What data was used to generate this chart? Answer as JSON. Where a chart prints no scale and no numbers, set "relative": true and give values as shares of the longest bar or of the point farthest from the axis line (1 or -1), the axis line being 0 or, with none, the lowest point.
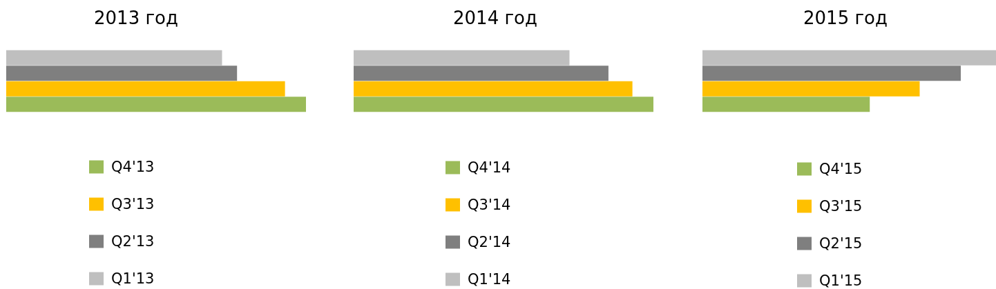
{
  "chart_data": [
    {
      "type": "bar",
      "title": "2013 год",
      "orientation": "horizontal",
      "relative": true,
      "legend": "bottom",
      "categories": [
        null
      ],
      "series": [
        {
          "name": "Q1'13",
          "color": "#bfbfbf",
          "values": [
            0.72
          ]
        },
        {
          "name": "Q2'13",
          "color": "#7f7f7f",
          "values": [
            0.77
          ]
        },
        {
          "name": "Q3'13",
          "color": "#ffc000",
          "values": [
            0.93
          ]
        },
        {
          "name": "Q4'13",
          "color": "#9bbb59",
          "values": [
            1
          ]
        }
      ]
    },
    {
      "type": "bar",
      "title": "2014 год",
      "orientation": "horizontal",
      "relative": true,
      "legend": "bottom",
      "categories": [
        null
      ],
      "series": [
        {
          "name": "Q1'14",
          "color": "#bfbfbf",
          "values": [
            0.72
          ]
        },
        {
          "name": "Q2'14",
          "color": "#7f7f7f",
          "values": [
            0.85
          ]
        },
        {
          "name": "Q3'14",
          "color": "#ffc000",
          "values": [
            0.93
          ]
        },
        {
          "name": "Q4'14",
          "color": "#9bbb59",
          "values": [
            1
          ]
        }
      ]
    },
    {
      "type": "bar",
      "title": "2015 год",
      "orientation": "horizontal",
      "relative": true,
      "legend": "bottom",
      "categories": [
        null
      ],
      "series": [
        {
          "name": "Q1'15",
          "color": "#bfbfbf",
          "values": [
            1
          ]
        },
        {
          "name": "Q2'15",
          "color": "#7f7f7f",
          "values": [
            0.88
          ]
        },
        {
          "name": "Q3'15",
          "color": "#ffc000",
          "values": [
            0.74
          ]
        },
        {
          "name": "Q4'15",
          "color": "#9bbb59",
          "values": [
            0.57
          ]
        }
      ]
    }
  ]
}
